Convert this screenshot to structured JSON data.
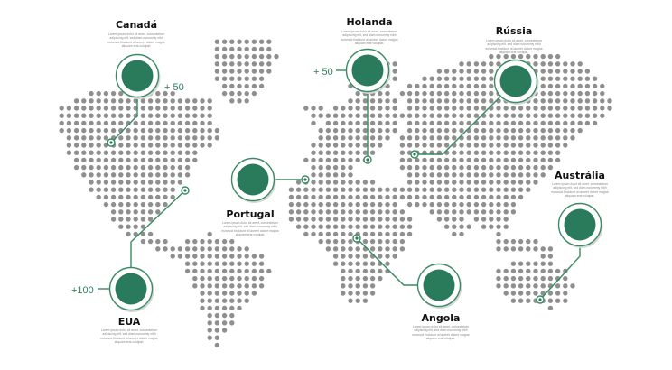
{
  "colors": {
    "accent": "#2a7a5c",
    "line": "#3a8a64",
    "dot": "#8f8f8f",
    "ring": "#ffffff"
  },
  "markers": [
    {
      "id": "canada",
      "title": "Canadá",
      "description": "Lorem ipsum dolor sit amet, consectetuer adipiscing elit, sed diam nonummy nibh euismod tincidunt ut laoreet dolore magna aliquam erat volutpat.",
      "count": "+ 50"
    },
    {
      "id": "holanda",
      "title": "Holanda",
      "description": "Lorem ipsum dolor sit amet, consectetuer adipiscing elit, sed diam nonummy nibh euismod tincidunt ut laoreet dolore magna aliquam erat volutpat.",
      "count": "+ 50"
    },
    {
      "id": "russia",
      "title": "Rússia",
      "description": "Lorem ipsum dolor sit amet, consectetuer adipiscing elit, sed diam nonummy nibh euismod tincidunt ut laoreet dolore magna aliquam erat volutpat.",
      "count": ""
    },
    {
      "id": "portugal",
      "title": "Portugal",
      "description": "Lorem ipsum dolor sit amet, consectetuer adipiscing elit, sed diam nonummy nibh euismod tincidunt ut laoreet dolore magna aliquam erat volutpat.",
      "count": ""
    },
    {
      "id": "australia",
      "title": "Austrália",
      "description": "Lorem ipsum dolor sit amet, consectetuer adipiscing elit, sed diam nonummy nibh euismod tincidunt ut laoreet dolore magna aliquam erat volutpat.",
      "count": ""
    },
    {
      "id": "eua",
      "title": "EUA",
      "description": "Lorem ipsum dolor sit amet, consectetuer adipiscing elit, sed diam nonummy nibh euismod tincidunt ut laoreet dolore magna aliquam erat volutpat.",
      "count": "+100"
    },
    {
      "id": "angola",
      "title": "Angola",
      "description": "Lorem ipsum dolor sit amet, consectetuer adipiscing elit, sed diam nonummy nibh euismod tincidunt ut laoreet dolore magna aliquam erat volutpat.",
      "count": ""
    }
  ]
}
